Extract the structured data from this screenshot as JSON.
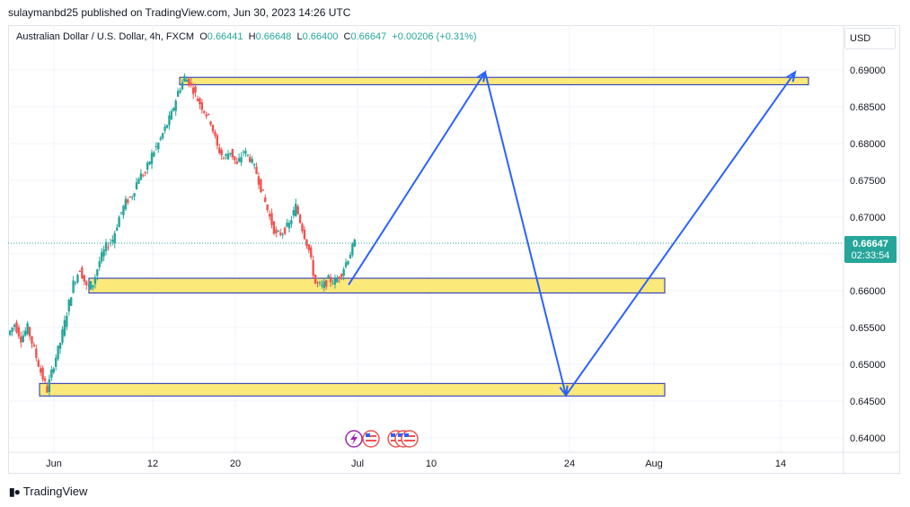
{
  "publisher": "sulaymanbd25 published on TradingView.com, Jun 30, 2023 14:26 UTC",
  "symbol": {
    "name": "Australian Dollar / U.S. Dollar, 4h, FXCM",
    "open_label": "O",
    "open": "0.66441",
    "high_label": "H",
    "high": "0.66648",
    "low_label": "L",
    "low": "0.66400",
    "close_label": "C",
    "close": "0.66647",
    "change": "+0.00206 (+0.31%)"
  },
  "currency": "USD",
  "price_badge": {
    "price": "0.66647",
    "countdown": "02:33:54"
  },
  "footer": {
    "brand": "TradingView"
  },
  "colors": {
    "up": "#26a69a",
    "down": "#ef5350",
    "zone_fill": "#fbe97a",
    "zone_border": "#1c2bb8",
    "arrow": "#2962ff"
  },
  "chart_data": {
    "type": "candlestick",
    "y_ticks": [
      "0.69000",
      "0.68500",
      "0.68000",
      "0.67500",
      "0.67000",
      "0.66500",
      "0.66000",
      "0.65500",
      "0.65000",
      "0.64500",
      "0.64000"
    ],
    "x_ticks": [
      "Jun",
      "12",
      "20",
      "Jul",
      "10",
      "24",
      "Aug",
      "14"
    ],
    "ylim": [
      0.6383,
      0.692
    ],
    "grid": true,
    "last_price": 0.66647,
    "price_path": [
      [
        0,
        0.654
      ],
      [
        1,
        0.6555
      ],
      [
        2,
        0.6535
      ],
      [
        3,
        0.655
      ],
      [
        4,
        0.652
      ],
      [
        5,
        0.649
      ],
      [
        6,
        0.6465
      ],
      [
        7,
        0.65
      ],
      [
        8,
        0.653
      ],
      [
        9,
        0.657
      ],
      [
        10,
        0.661
      ],
      [
        11,
        0.663
      ],
      [
        12,
        0.6605
      ],
      [
        13,
        0.661
      ],
      [
        14,
        0.664
      ],
      [
        15,
        0.666
      ],
      [
        16,
        0.667
      ],
      [
        17,
        0.67
      ],
      [
        18,
        0.672
      ],
      [
        19,
        0.673
      ],
      [
        20,
        0.6755
      ],
      [
        21,
        0.676
      ],
      [
        22,
        0.6785
      ],
      [
        23,
        0.68
      ],
      [
        24,
        0.682
      ],
      [
        25,
        0.684
      ],
      [
        26,
        0.687
      ],
      [
        27,
        0.689
      ],
      [
        28,
        0.688
      ],
      [
        29,
        0.686
      ],
      [
        30,
        0.6845
      ],
      [
        31,
        0.683
      ],
      [
        32,
        0.6795
      ],
      [
        33,
        0.678
      ],
      [
        34,
        0.679
      ],
      [
        35,
        0.677
      ],
      [
        36,
        0.679
      ],
      [
        37,
        0.678
      ],
      [
        38,
        0.676
      ],
      [
        39,
        0.673
      ],
      [
        40,
        0.67
      ],
      [
        41,
        0.6675
      ],
      [
        42,
        0.668
      ],
      [
        43,
        0.669
      ],
      [
        44,
        0.6715
      ],
      [
        45,
        0.6685
      ],
      [
        46,
        0.6655
      ],
      [
        47,
        0.661
      ],
      [
        48,
        0.6605
      ],
      [
        49,
        0.6615
      ],
      [
        50,
        0.6612
      ],
      [
        51,
        0.6625
      ],
      [
        52,
        0.6645
      ],
      [
        53,
        0.6665
      ]
    ],
    "zones": [
      {
        "x_from": 0.689,
        "x_to": 0.688,
        "start": "Jun 15",
        "end": "Aug 19"
      },
      {
        "x_from": 0.6617,
        "x_to": 0.6597,
        "start": "Jun 5",
        "end": "Jul 27"
      },
      {
        "x_from": 0.6474,
        "x_to": 0.6457,
        "start": "May 31",
        "end": "Jul 27"
      }
    ],
    "projection": [
      {
        "date": "Jun 30",
        "price": 0.6608
      },
      {
        "date": "Jul 16",
        "price": 0.6897
      },
      {
        "date": "Jul 24",
        "price": 0.6458
      },
      {
        "date": "Aug 15",
        "price": 0.6897
      }
    ]
  }
}
